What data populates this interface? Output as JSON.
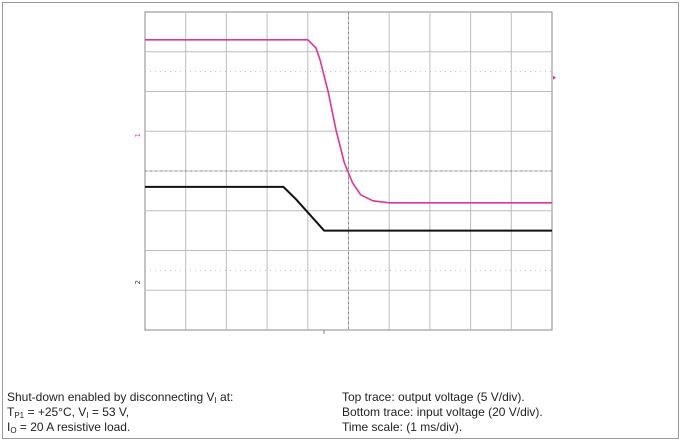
{
  "chart_data": {
    "type": "line",
    "grid": true,
    "x_divisions": 10,
    "y_divisions": 8,
    "x_unit": "ms/div",
    "x_per_div": 1,
    "channel_markers": [
      "1",
      "2"
    ],
    "series": [
      {
        "channel": "1",
        "trace": "output voltage",
        "volts_per_div": 5,
        "color": "#e0329f",
        "x": [
          0,
          4.0,
          4.2,
          4.3,
          4.5,
          4.7,
          4.9,
          5.1,
          5.3,
          5.6,
          6.0,
          10
        ],
        "y_div": [
          7.3,
          7.3,
          7.1,
          6.8,
          6.0,
          5.0,
          4.2,
          3.7,
          3.4,
          3.25,
          3.2,
          3.2
        ]
      },
      {
        "channel": "2",
        "trace": "input voltage",
        "volts_per_div": 20,
        "color": "#111111",
        "x": [
          0,
          3.4,
          3.7,
          4.4,
          10
        ],
        "y_div": [
          3.6,
          3.6,
          3.3,
          2.5,
          2.5
        ]
      }
    ],
    "axis_color": "#888888",
    "grid_color": "#bdbdbd"
  },
  "caption": {
    "left": {
      "line1_a": "Shut-down enabled by disconnecting V",
      "line1_sub": "I",
      "line1_b": " at:",
      "line2_a": "T",
      "line2_sub1": "P1",
      "line2_b": " = +25°C, V",
      "line2_sub2": "I",
      "line2_c": " = 53 V,",
      "line3_a": "I",
      "line3_sub": "O",
      "line3_b": " = 20 A resistive load."
    },
    "right": {
      "line1": "Top trace: output voltage (5 V/div).",
      "line2": "Bottom trace: input voltage (20 V/div).",
      "line3": "Time scale: (1 ms/div)."
    }
  }
}
